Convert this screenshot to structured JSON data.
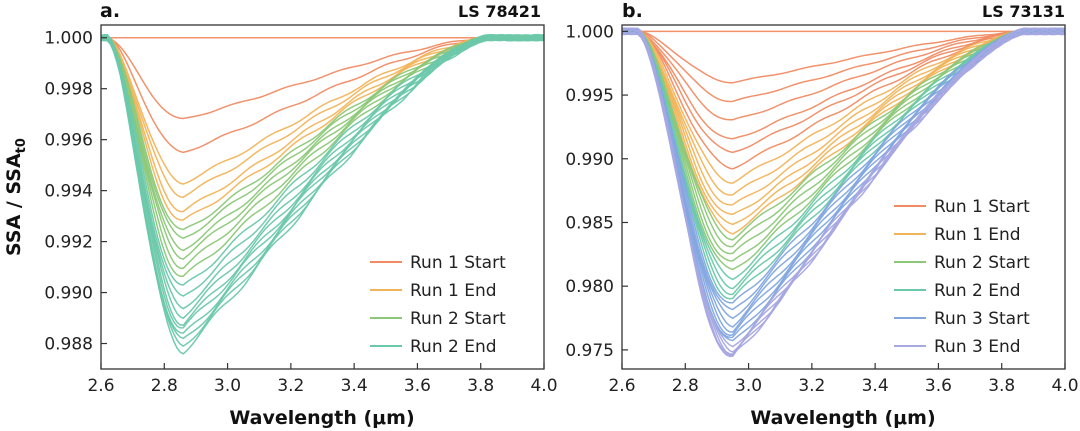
{
  "chart_data": [
    {
      "type": "line",
      "panel_label": "a.",
      "sample": "LS 78421",
      "xlabel": "Wavelength (μm)",
      "ylabel": "SSA / SSA",
      "ylabel_sub": "t0",
      "xlim": [
        2.6,
        4.0
      ],
      "ylim": [
        0.987,
        1.0005
      ],
      "x_ticks": [
        "2.6",
        "2.8",
        "3.0",
        "3.2",
        "3.4",
        "3.6",
        "3.8",
        "4.0"
      ],
      "y_ticks": [
        "0.988",
        "0.990",
        "0.992",
        "0.994",
        "0.996",
        "0.998",
        "1.000"
      ],
      "grid": false,
      "legend_position": "bottom-right",
      "band": {
        "start": 2.62,
        "minimum": 2.86,
        "end": 3.82
      },
      "series": [
        {
          "name": "Run 1 Start",
          "color": "#F08C64",
          "min_depths": [
            0,
            0.9968,
            0.9955
          ]
        },
        {
          "name": "Run 1 End",
          "color": "#F2B45A",
          "min_depths": [
            0.9943,
            0.9938,
            0.9932,
            0.9928
          ]
        },
        {
          "name": "Run 2 Start",
          "color": "#8CC878",
          "min_depths": [
            0.9924,
            0.9921,
            0.9917,
            0.9914,
            0.991,
            0.9906
          ]
        },
        {
          "name": "Run 2 End",
          "color": "#6CC8AA",
          "min_depths": [
            0.9902,
            0.9898,
            0.9894,
            0.9891,
            0.9888,
            0.9886,
            0.9883,
            0.9881,
            0.9879,
            0.9877
          ]
        }
      ]
    },
    {
      "type": "line",
      "panel_label": "b.",
      "sample": "LS 73131",
      "xlabel": "Wavelength (μm)",
      "ylabel": "",
      "xlim": [
        2.6,
        4.0
      ],
      "ylim": [
        0.9735,
        1.0005
      ],
      "x_ticks": [
        "2.6",
        "2.8",
        "3.0",
        "3.2",
        "3.4",
        "3.6",
        "3.8",
        "4.0"
      ],
      "y_ticks": [
        "0.975",
        "0.980",
        "0.985",
        "0.990",
        "0.995",
        "1.000"
      ],
      "grid": false,
      "legend_position": "right",
      "band": {
        "start": 2.65,
        "minimum": 2.95,
        "end": 3.87
      },
      "series": [
        {
          "name": "Run 1 Start",
          "color": "#F08C64",
          "min_depths": [
            0,
            0.996,
            0.9945,
            0.993,
            0.9915,
            0.9905,
            0.9893
          ]
        },
        {
          "name": "Run 1 End",
          "color": "#F2B45A",
          "min_depths": [
            0.9882,
            0.9872,
            0.9863,
            0.9855,
            0.9848,
            0.9842
          ]
        },
        {
          "name": "Run 2 Start",
          "color": "#8CC878",
          "min_depths": [
            0.9838,
            0.9832,
            0.9825,
            0.9818,
            0.9812
          ]
        },
        {
          "name": "Run 2 End",
          "color": "#6CC8AA",
          "min_depths": [
            0.9806,
            0.98,
            0.9795,
            0.979
          ]
        },
        {
          "name": "Run 3 Start",
          "color": "#82A6E0",
          "min_depths": [
            0.9785,
            0.978,
            0.9775,
            0.977,
            0.9766,
            0.9762,
            0.9758,
            0.9755
          ]
        },
        {
          "name": "Run 3 End",
          "color": "#A6A8E2",
          "min_depths": [
            0.9752,
            0.975,
            0.9748,
            0.9746,
            0.9745,
            0.9744
          ]
        }
      ]
    }
  ]
}
